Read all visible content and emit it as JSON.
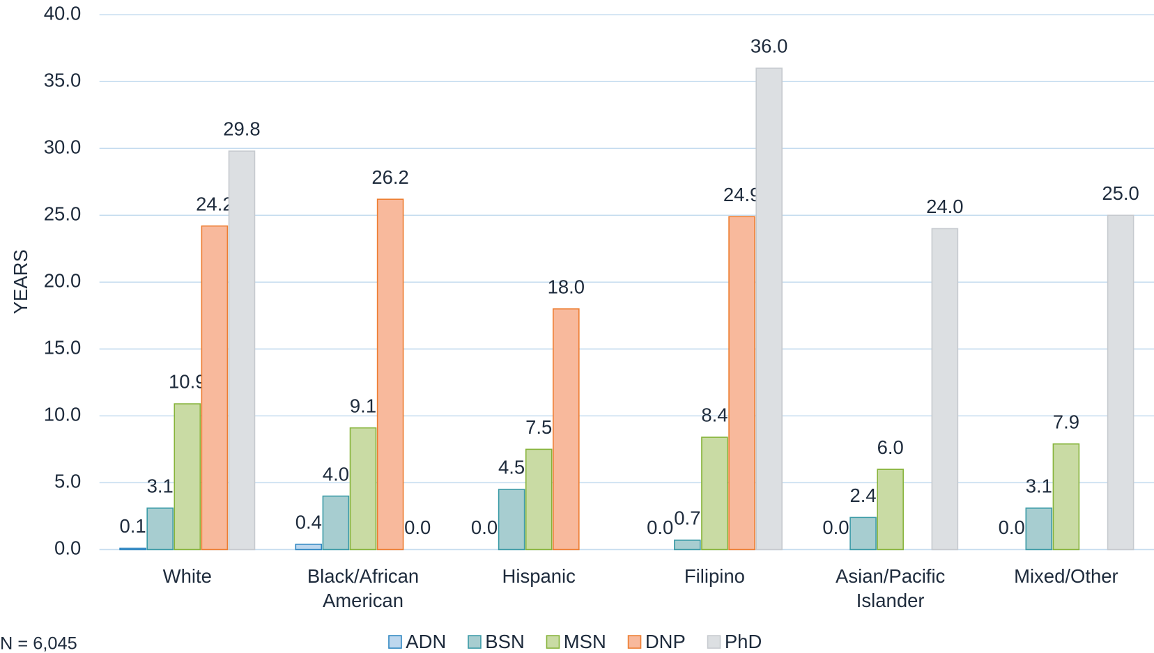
{
  "chart_data": {
    "type": "bar",
    "y_label": "YEARS",
    "note": "N = 6,045",
    "categories": [
      "White",
      "Black/African American",
      "Hispanic",
      "Filipino",
      "Asian/Pacific Islander",
      "Mixed/Other"
    ],
    "series": [
      {
        "name": "ADN",
        "color": "#bdd7ee",
        "edge": "#2e86c1",
        "values": [
          0.1,
          0.4,
          0.0,
          0.0,
          0.0,
          0.0
        ],
        "value_labels": [
          "0.1",
          "0.4",
          "0.0",
          "0.0",
          "0.0",
          "0.0"
        ]
      },
      {
        "name": "BSN",
        "color": "#a7cdd0",
        "edge": "#3a9aa6",
        "values": [
          3.1,
          4.0,
          4.5,
          0.7,
          2.4,
          3.1
        ],
        "value_labels": [
          "3.1",
          "4.0",
          "4.5",
          "0.7",
          "2.4",
          "3.1"
        ]
      },
      {
        "name": "MSN",
        "color": "#c9dba4",
        "edge": "#86b33a",
        "values": [
          10.9,
          9.1,
          7.5,
          8.4,
          6.0,
          7.9
        ],
        "value_labels": [
          "10.9",
          "9.1",
          "7.5",
          "8.4",
          "6.0",
          "7.9"
        ]
      },
      {
        "name": "DNP",
        "color": "#f8b99c",
        "edge": "#ed7d31",
        "values": [
          24.2,
          26.2,
          18.0,
          24.9,
          null,
          null
        ],
        "value_labels": [
          "24.2",
          "26.2",
          "18.0",
          "24.9",
          null,
          null
        ]
      },
      {
        "name": "PhD",
        "color": "#dcdfe2",
        "edge": "#c6cacf",
        "values": [
          29.8,
          0.0,
          null,
          36.0,
          24.0,
          25.0
        ],
        "value_labels": [
          "29.8",
          "0.0",
          null,
          "36.0",
          "24.0",
          "25.0"
        ]
      }
    ],
    "ylim": [
      0,
      40
    ],
    "yticks": [
      {
        "value": 0,
        "label": "0.0"
      },
      {
        "value": 5,
        "label": "5.0"
      },
      {
        "value": 10,
        "label": "10.0"
      },
      {
        "value": 15,
        "label": "15.0"
      },
      {
        "value": 20,
        "label": "20.0"
      },
      {
        "value": 25,
        "label": "25.0"
      },
      {
        "value": 30,
        "label": "30.0"
      },
      {
        "value": 35,
        "label": "35.0"
      },
      {
        "value": 40,
        "label": "40.0"
      }
    ],
    "grid": true,
    "legend": "bottom"
  }
}
